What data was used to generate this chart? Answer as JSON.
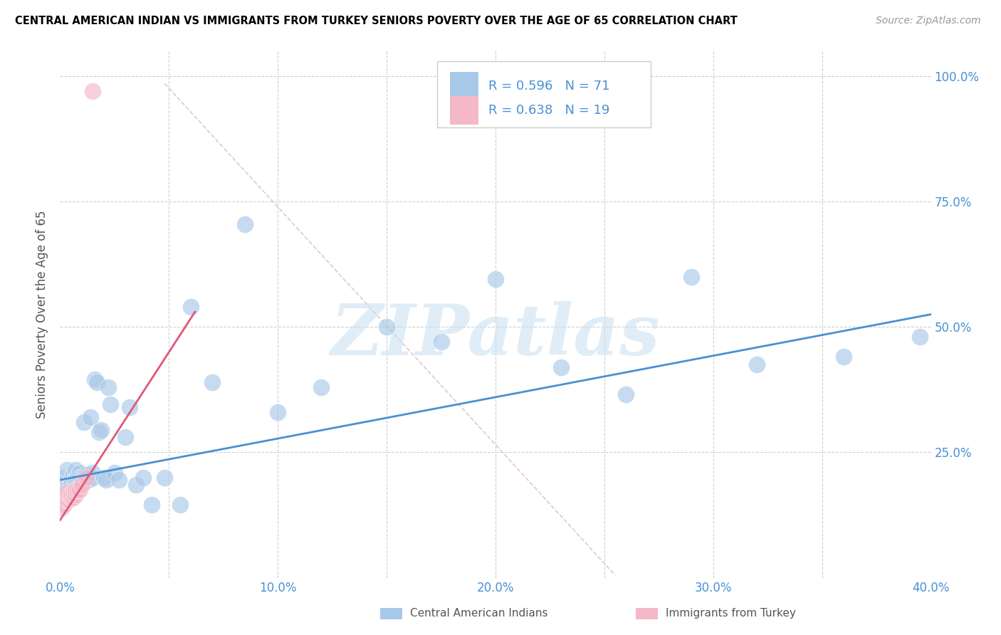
{
  "title": "CENTRAL AMERICAN INDIAN VS IMMIGRANTS FROM TURKEY SENIORS POVERTY OVER THE AGE OF 65 CORRELATION CHART",
  "source": "Source: ZipAtlas.com",
  "ylabel": "Seniors Poverty Over the Age of 65",
  "xlim": [
    0.0,
    0.4
  ],
  "ylim": [
    0.0,
    1.05
  ],
  "xticks": [
    0.0,
    0.05,
    0.1,
    0.15,
    0.2,
    0.25,
    0.3,
    0.35,
    0.4
  ],
  "xticklabels": [
    "0.0%",
    "",
    "10.0%",
    "",
    "20.0%",
    "",
    "30.0%",
    "",
    "40.0%"
  ],
  "yticks_right": [
    0.0,
    0.25,
    0.5,
    0.75,
    1.0
  ],
  "yticklabels_right": [
    "",
    "25.0%",
    "50.0%",
    "75.0%",
    "100.0%"
  ],
  "blue_color": "#a8c8e8",
  "pink_color": "#f4b8c8",
  "trend_blue": "#4a90d4",
  "trend_pink": "#e05878",
  "R_blue": 0.596,
  "N_blue": 71,
  "R_pink": 0.638,
  "N_pink": 19,
  "watermark": "ZIPatlas",
  "blue_scatter_x": [
    0.001,
    0.001,
    0.002,
    0.002,
    0.002,
    0.003,
    0.003,
    0.003,
    0.003,
    0.004,
    0.004,
    0.004,
    0.005,
    0.005,
    0.005,
    0.005,
    0.006,
    0.006,
    0.006,
    0.007,
    0.007,
    0.007,
    0.007,
    0.008,
    0.008,
    0.008,
    0.009,
    0.009,
    0.01,
    0.01,
    0.01,
    0.011,
    0.011,
    0.012,
    0.012,
    0.013,
    0.013,
    0.014,
    0.015,
    0.015,
    0.016,
    0.017,
    0.018,
    0.019,
    0.02,
    0.021,
    0.022,
    0.023,
    0.025,
    0.027,
    0.03,
    0.032,
    0.035,
    0.038,
    0.042,
    0.048,
    0.055,
    0.06,
    0.07,
    0.085,
    0.1,
    0.12,
    0.15,
    0.175,
    0.2,
    0.23,
    0.26,
    0.29,
    0.32,
    0.36,
    0.395
  ],
  "blue_scatter_y": [
    0.185,
    0.195,
    0.18,
    0.2,
    0.19,
    0.185,
    0.195,
    0.215,
    0.175,
    0.19,
    0.2,
    0.185,
    0.19,
    0.2,
    0.195,
    0.185,
    0.195,
    0.205,
    0.18,
    0.2,
    0.195,
    0.215,
    0.195,
    0.205,
    0.19,
    0.2,
    0.21,
    0.2,
    0.2,
    0.19,
    0.195,
    0.31,
    0.2,
    0.195,
    0.205,
    0.195,
    0.2,
    0.32,
    0.2,
    0.21,
    0.395,
    0.39,
    0.29,
    0.295,
    0.2,
    0.195,
    0.38,
    0.345,
    0.21,
    0.195,
    0.28,
    0.34,
    0.185,
    0.2,
    0.145,
    0.2,
    0.145,
    0.54,
    0.39,
    0.705,
    0.33,
    0.38,
    0.5,
    0.47,
    0.595,
    0.42,
    0.365,
    0.6,
    0.425,
    0.44,
    0.48
  ],
  "pink_scatter_x": [
    0.001,
    0.001,
    0.002,
    0.002,
    0.003,
    0.003,
    0.004,
    0.004,
    0.005,
    0.005,
    0.006,
    0.006,
    0.007,
    0.007,
    0.008,
    0.009,
    0.01,
    0.012,
    0.015
  ],
  "pink_scatter_y": [
    0.14,
    0.155,
    0.145,
    0.16,
    0.155,
    0.17,
    0.155,
    0.165,
    0.16,
    0.165,
    0.16,
    0.17,
    0.165,
    0.175,
    0.175,
    0.175,
    0.185,
    0.2,
    0.97
  ],
  "blue_trend_x": [
    0.0,
    0.4
  ],
  "blue_trend_y": [
    0.195,
    0.525
  ],
  "pink_trend_x": [
    0.0,
    0.062
  ],
  "pink_trend_y": [
    0.115,
    0.53
  ],
  "ref_line_x": [
    0.048,
    0.255
  ],
  "ref_line_y": [
    0.985,
    0.005
  ]
}
